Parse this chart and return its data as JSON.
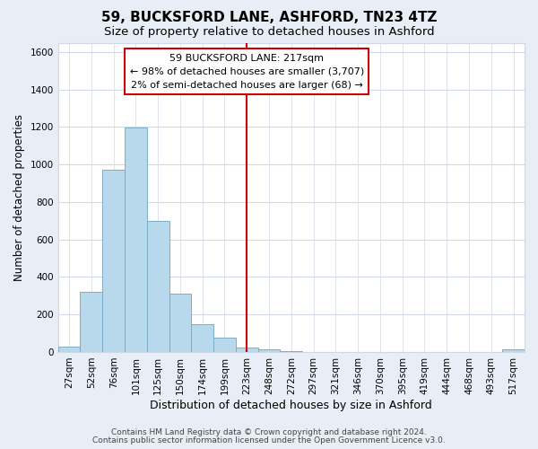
{
  "title": "59, BUCKSFORD LANE, ASHFORD, TN23 4TZ",
  "subtitle": "Size of property relative to detached houses in Ashford",
  "xlabel": "Distribution of detached houses by size in Ashford",
  "ylabel": "Number of detached properties",
  "bar_labels": [
    "27sqm",
    "52sqm",
    "76sqm",
    "101sqm",
    "125sqm",
    "150sqm",
    "174sqm",
    "199sqm",
    "223sqm",
    "248sqm",
    "272sqm",
    "297sqm",
    "321sqm",
    "346sqm",
    "370sqm",
    "395sqm",
    "419sqm",
    "444sqm",
    "468sqm",
    "493sqm",
    "517sqm"
  ],
  "bar_heights": [
    30,
    320,
    970,
    1195,
    700,
    310,
    150,
    75,
    25,
    15,
    5,
    2,
    0,
    0,
    0,
    0,
    0,
    0,
    0,
    0,
    15
  ],
  "bar_color": "#b8d8eb",
  "bar_edge_color": "#7aaec8",
  "vline_x_idx": 8,
  "vline_color": "#cc0000",
  "annotation_text": "59 BUCKSFORD LANE: 217sqm\n← 98% of detached houses are smaller (3,707)\n2% of semi-detached houses are larger (68) →",
  "annotation_box_color": "#ffffff",
  "annotation_box_edge": "#cc0000",
  "ylim": [
    0,
    1650
  ],
  "yticks": [
    0,
    200,
    400,
    600,
    800,
    1000,
    1200,
    1400,
    1600
  ],
  "grid_color": "#d0d8e8",
  "plot_bg_color": "#ffffff",
  "fig_bg_color": "#e8eef5",
  "footer_line1": "Contains HM Land Registry data © Crown copyright and database right 2024.",
  "footer_line2": "Contains public sector information licensed under the Open Government Licence v3.0.",
  "title_fontsize": 11,
  "subtitle_fontsize": 9.5,
  "xlabel_fontsize": 9,
  "ylabel_fontsize": 8.5,
  "tick_fontsize": 7.5,
  "footer_fontsize": 6.5
}
